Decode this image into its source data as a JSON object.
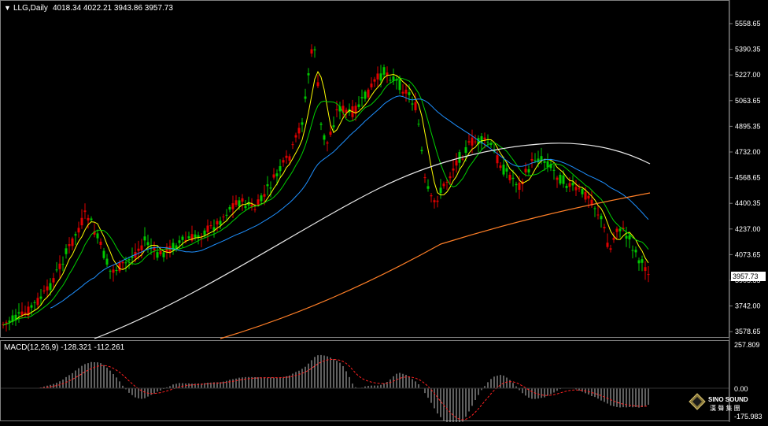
{
  "chart_data": {
    "type": "candlestick",
    "header": {
      "symbol": "LLG,Daily",
      "ohlc": "4018.34 4022.21 3943.86 3957.73"
    },
    "price_axis": {
      "ticks": [
        "5558.65",
        "5390.35",
        "5227.00",
        "5063.65",
        "4895.35",
        "4732.00",
        "4568.65",
        "4400.35",
        "4237.00",
        "4073.65",
        "3905.35",
        "3742.00",
        "3578.65"
      ],
      "current_price": "3957.73",
      "ylim": [
        3578.65,
        5558.65
      ]
    },
    "colors": {
      "bull": "#00c800",
      "bear": "#e00000",
      "ma_yellow": "#ffff00",
      "ma_green": "#00d000",
      "ma_blue": "#1e90ff",
      "ma_white": "#e8e8e8",
      "ma_orange": "#ff7f27",
      "macd_hist": "#c0c0c0",
      "macd_signal": "#ff2020",
      "grid_frame": "#808080"
    },
    "macd": {
      "label": "MACD(12,26,9) -128.321 -112.261",
      "ticks": [
        "257.809",
        "0.00",
        "-175.983"
      ]
    },
    "watermark": {
      "line1": "SINO SOUND",
      "line2": "漢 聲 集 團"
    }
  }
}
